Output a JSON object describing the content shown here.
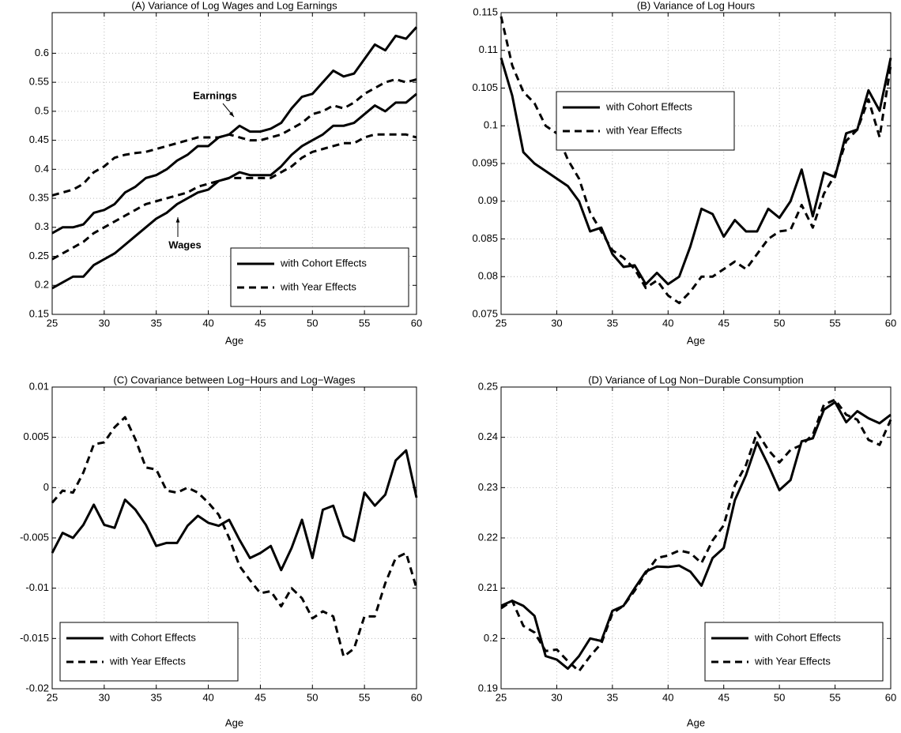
{
  "chart_data": [
    {
      "type": "line",
      "title": "(A) Variance of Log Wages and Log Earnings",
      "xlabel": "Age",
      "x": [
        25,
        26,
        27,
        28,
        29,
        30,
        31,
        32,
        33,
        34,
        35,
        36,
        37,
        38,
        39,
        40,
        41,
        42,
        43,
        44,
        45,
        46,
        47,
        48,
        49,
        50,
        51,
        52,
        53,
        54,
        55,
        56,
        57,
        58,
        59,
        60
      ],
      "xlim": [
        25,
        60
      ],
      "xticks": [
        25,
        30,
        35,
        40,
        45,
        50,
        55,
        60
      ],
      "ylim": [
        0.15,
        0.67
      ],
      "yticks": [
        0.15,
        0.2,
        0.25,
        0.3,
        0.35,
        0.4,
        0.45,
        0.5,
        0.55,
        0.6
      ],
      "grid": true,
      "legend": "lower right",
      "annotations": [
        "Earnings",
        "Wages"
      ],
      "series": [
        {
          "name": "with Cohort Effects",
          "color": "#000000",
          "line_style": "solid",
          "earnings": [
            0.29,
            0.3,
            0.3,
            0.305,
            0.325,
            0.33,
            0.34,
            0.36,
            0.37,
            0.385,
            0.39,
            0.4,
            0.415,
            0.425,
            0.44,
            0.44,
            0.455,
            0.46,
            0.475,
            0.465,
            0.465,
            0.47,
            0.48,
            0.505,
            0.525,
            0.53,
            0.55,
            0.57,
            0.56,
            0.565,
            0.59,
            0.615,
            0.605,
            0.63,
            0.625,
            0.645
          ],
          "wages": [
            0.195,
            0.205,
            0.215,
            0.215,
            0.235,
            0.245,
            0.255,
            0.27,
            0.285,
            0.3,
            0.315,
            0.325,
            0.34,
            0.35,
            0.36,
            0.365,
            0.38,
            0.385,
            0.395,
            0.39,
            0.39,
            0.39,
            0.405,
            0.425,
            0.44,
            0.45,
            0.46,
            0.475,
            0.475,
            0.48,
            0.495,
            0.51,
            0.5,
            0.515,
            0.515,
            0.53
          ]
        },
        {
          "name": "with Year Effects",
          "color": "#000000",
          "line_style": "dashed",
          "earnings": [
            0.355,
            0.36,
            0.365,
            0.375,
            0.395,
            0.405,
            0.42,
            0.425,
            0.428,
            0.43,
            0.435,
            0.44,
            0.445,
            0.45,
            0.455,
            0.455,
            0.455,
            0.46,
            0.455,
            0.45,
            0.45,
            0.455,
            0.46,
            0.47,
            0.48,
            0.495,
            0.5,
            0.51,
            0.505,
            0.515,
            0.53,
            0.54,
            0.55,
            0.555,
            0.55,
            0.555
          ],
          "wages": [
            0.245,
            0.255,
            0.265,
            0.275,
            0.29,
            0.3,
            0.31,
            0.32,
            0.33,
            0.34,
            0.345,
            0.35,
            0.355,
            0.36,
            0.37,
            0.375,
            0.38,
            0.385,
            0.385,
            0.385,
            0.385,
            0.385,
            0.395,
            0.405,
            0.42,
            0.43,
            0.435,
            0.44,
            0.445,
            0.445,
            0.455,
            0.46,
            0.46,
            0.46,
            0.46,
            0.455
          ]
        }
      ]
    },
    {
      "type": "line",
      "title": "(B) Variance of Log Hours",
      "xlabel": "Age",
      "x": [
        25,
        26,
        27,
        28,
        29,
        30,
        31,
        32,
        33,
        34,
        35,
        36,
        37,
        38,
        39,
        40,
        41,
        42,
        43,
        44,
        45,
        46,
        47,
        48,
        49,
        50,
        51,
        52,
        53,
        54,
        55,
        56,
        57,
        58,
        59,
        60
      ],
      "xlim": [
        25,
        60
      ],
      "xticks": [
        25,
        30,
        35,
        40,
        45,
        50,
        55,
        60
      ],
      "ylim": [
        0.075,
        0.115
      ],
      "yticks": [
        0.075,
        0.08,
        0.085,
        0.09,
        0.095,
        0.1,
        0.105,
        0.11,
        0.115
      ],
      "grid": true,
      "legend": "upper left",
      "series": [
        {
          "name": "with Cohort Effects",
          "color": "#000000",
          "line_style": "solid",
          "values": [
            0.109,
            0.104,
            0.0965,
            0.095,
            0.094,
            0.093,
            0.092,
            0.09,
            0.086,
            0.0865,
            0.083,
            0.0813,
            0.0815,
            0.079,
            0.0805,
            0.079,
            0.08,
            0.084,
            0.089,
            0.0883,
            0.0853,
            0.0875,
            0.086,
            0.086,
            0.089,
            0.0878,
            0.09,
            0.0942,
            0.088,
            0.0938,
            0.0932,
            0.099,
            0.0995,
            0.1047,
            0.102,
            0.109
          ]
        },
        {
          "name": "with Year Effects",
          "color": "#000000",
          "line_style": "dashed",
          "values": [
            0.1145,
            0.108,
            0.1045,
            0.103,
            0.1,
            0.099,
            0.0955,
            0.093,
            0.0885,
            0.086,
            0.0835,
            0.0825,
            0.081,
            0.0785,
            0.0795,
            0.0775,
            0.0765,
            0.078,
            0.08,
            0.08,
            0.081,
            0.082,
            0.081,
            0.083,
            0.085,
            0.086,
            0.0862,
            0.0895,
            0.0865,
            0.091,
            0.0935,
            0.098,
            0.0995,
            0.1035,
            0.0985,
            0.108
          ]
        }
      ]
    },
    {
      "type": "line",
      "title": "(C) Covariance between Log−Hours and Log−Wages",
      "xlabel": "Age",
      "x": [
        25,
        26,
        27,
        28,
        29,
        30,
        31,
        32,
        33,
        34,
        35,
        36,
        37,
        38,
        39,
        40,
        41,
        42,
        43,
        44,
        45,
        46,
        47,
        48,
        49,
        50,
        51,
        52,
        53,
        54,
        55,
        56,
        57,
        58,
        59,
        60
      ],
      "xlim": [
        25,
        60
      ],
      "xticks": [
        25,
        30,
        35,
        40,
        45,
        50,
        55,
        60
      ],
      "ylim": [
        -0.02,
        0.01
      ],
      "yticks": [
        -0.02,
        -0.015,
        -0.01,
        -0.005,
        0,
        0.005,
        0.01
      ],
      "grid": true,
      "legend": "lower left",
      "series": [
        {
          "name": "with Cohort Effects",
          "color": "#000000",
          "line_style": "solid",
          "values": [
            -0.0065,
            -0.0045,
            -0.005,
            -0.0037,
            -0.0017,
            -0.0037,
            -0.004,
            -0.0012,
            -0.0022,
            -0.0037,
            -0.0058,
            -0.0055,
            -0.0055,
            -0.0038,
            -0.0028,
            -0.0035,
            -0.0038,
            -0.0032,
            -0.0052,
            -0.007,
            -0.0065,
            -0.0058,
            -0.0082,
            -0.006,
            -0.0032,
            -0.007,
            -0.0022,
            -0.0018,
            -0.0048,
            -0.0053,
            -0.0005,
            -0.0018,
            -0.0007,
            0.0027,
            0.0037,
            -0.001
          ]
        },
        {
          "name": "with Year Effects",
          "color": "#000000",
          "line_style": "dashed",
          "values": [
            -0.0015,
            -0.0003,
            -0.0005,
            0.0015,
            0.0043,
            0.0045,
            0.006,
            0.007,
            0.0048,
            0.002,
            0.0018,
            -0.0003,
            -0.0005,
            0,
            -0.0005,
            -0.0015,
            -0.0027,
            -0.005,
            -0.0078,
            -0.0092,
            -0.0105,
            -0.0103,
            -0.0118,
            -0.01,
            -0.011,
            -0.013,
            -0.0123,
            -0.0128,
            -0.0168,
            -0.016,
            -0.0128,
            -0.0128,
            -0.0095,
            -0.007,
            -0.0065,
            -0.01
          ]
        }
      ]
    },
    {
      "type": "line",
      "title": "(D) Variance of Log Non−Durable Consumption",
      "xlabel": "Age",
      "x": [
        25,
        26,
        27,
        28,
        29,
        30,
        31,
        32,
        33,
        34,
        35,
        36,
        37,
        38,
        39,
        40,
        41,
        42,
        43,
        44,
        45,
        46,
        47,
        48,
        49,
        50,
        51,
        52,
        53,
        54,
        55,
        56,
        57,
        58,
        59,
        60
      ],
      "xlim": [
        25,
        60
      ],
      "xticks": [
        25,
        30,
        35,
        40,
        45,
        50,
        55,
        60
      ],
      "ylim": [
        0.19,
        0.25
      ],
      "yticks": [
        0.19,
        0.2,
        0.21,
        0.22,
        0.23,
        0.24,
        0.25
      ],
      "grid": true,
      "legend": "lower right",
      "series": [
        {
          "name": "with Cohort Effects",
          "color": "#000000",
          "line_style": "solid",
          "values": [
            0.2065,
            0.2075,
            0.2065,
            0.2045,
            0.1965,
            0.1958,
            0.194,
            0.1965,
            0.2,
            0.1995,
            0.2055,
            0.2065,
            0.21,
            0.2133,
            0.2143,
            0.2142,
            0.2145,
            0.2133,
            0.2105,
            0.216,
            0.218,
            0.2275,
            0.2325,
            0.239,
            0.2345,
            0.2295,
            0.2315,
            0.2392,
            0.2398,
            0.2455,
            0.247,
            0.243,
            0.2452,
            0.2438,
            0.2428,
            0.2445
          ]
        },
        {
          "name": "with Year Effects",
          "color": "#000000",
          "line_style": "dashed",
          "values": [
            0.206,
            0.2075,
            0.2025,
            0.2012,
            0.1975,
            0.1978,
            0.1955,
            0.1935,
            0.1965,
            0.199,
            0.205,
            0.2065,
            0.2095,
            0.213,
            0.216,
            0.2165,
            0.2175,
            0.217,
            0.215,
            0.2195,
            0.2225,
            0.2305,
            0.2345,
            0.241,
            0.2375,
            0.235,
            0.2375,
            0.2385,
            0.2405,
            0.2465,
            0.2475,
            0.2445,
            0.2435,
            0.2395,
            0.2385,
            0.2435
          ]
        }
      ]
    }
  ]
}
